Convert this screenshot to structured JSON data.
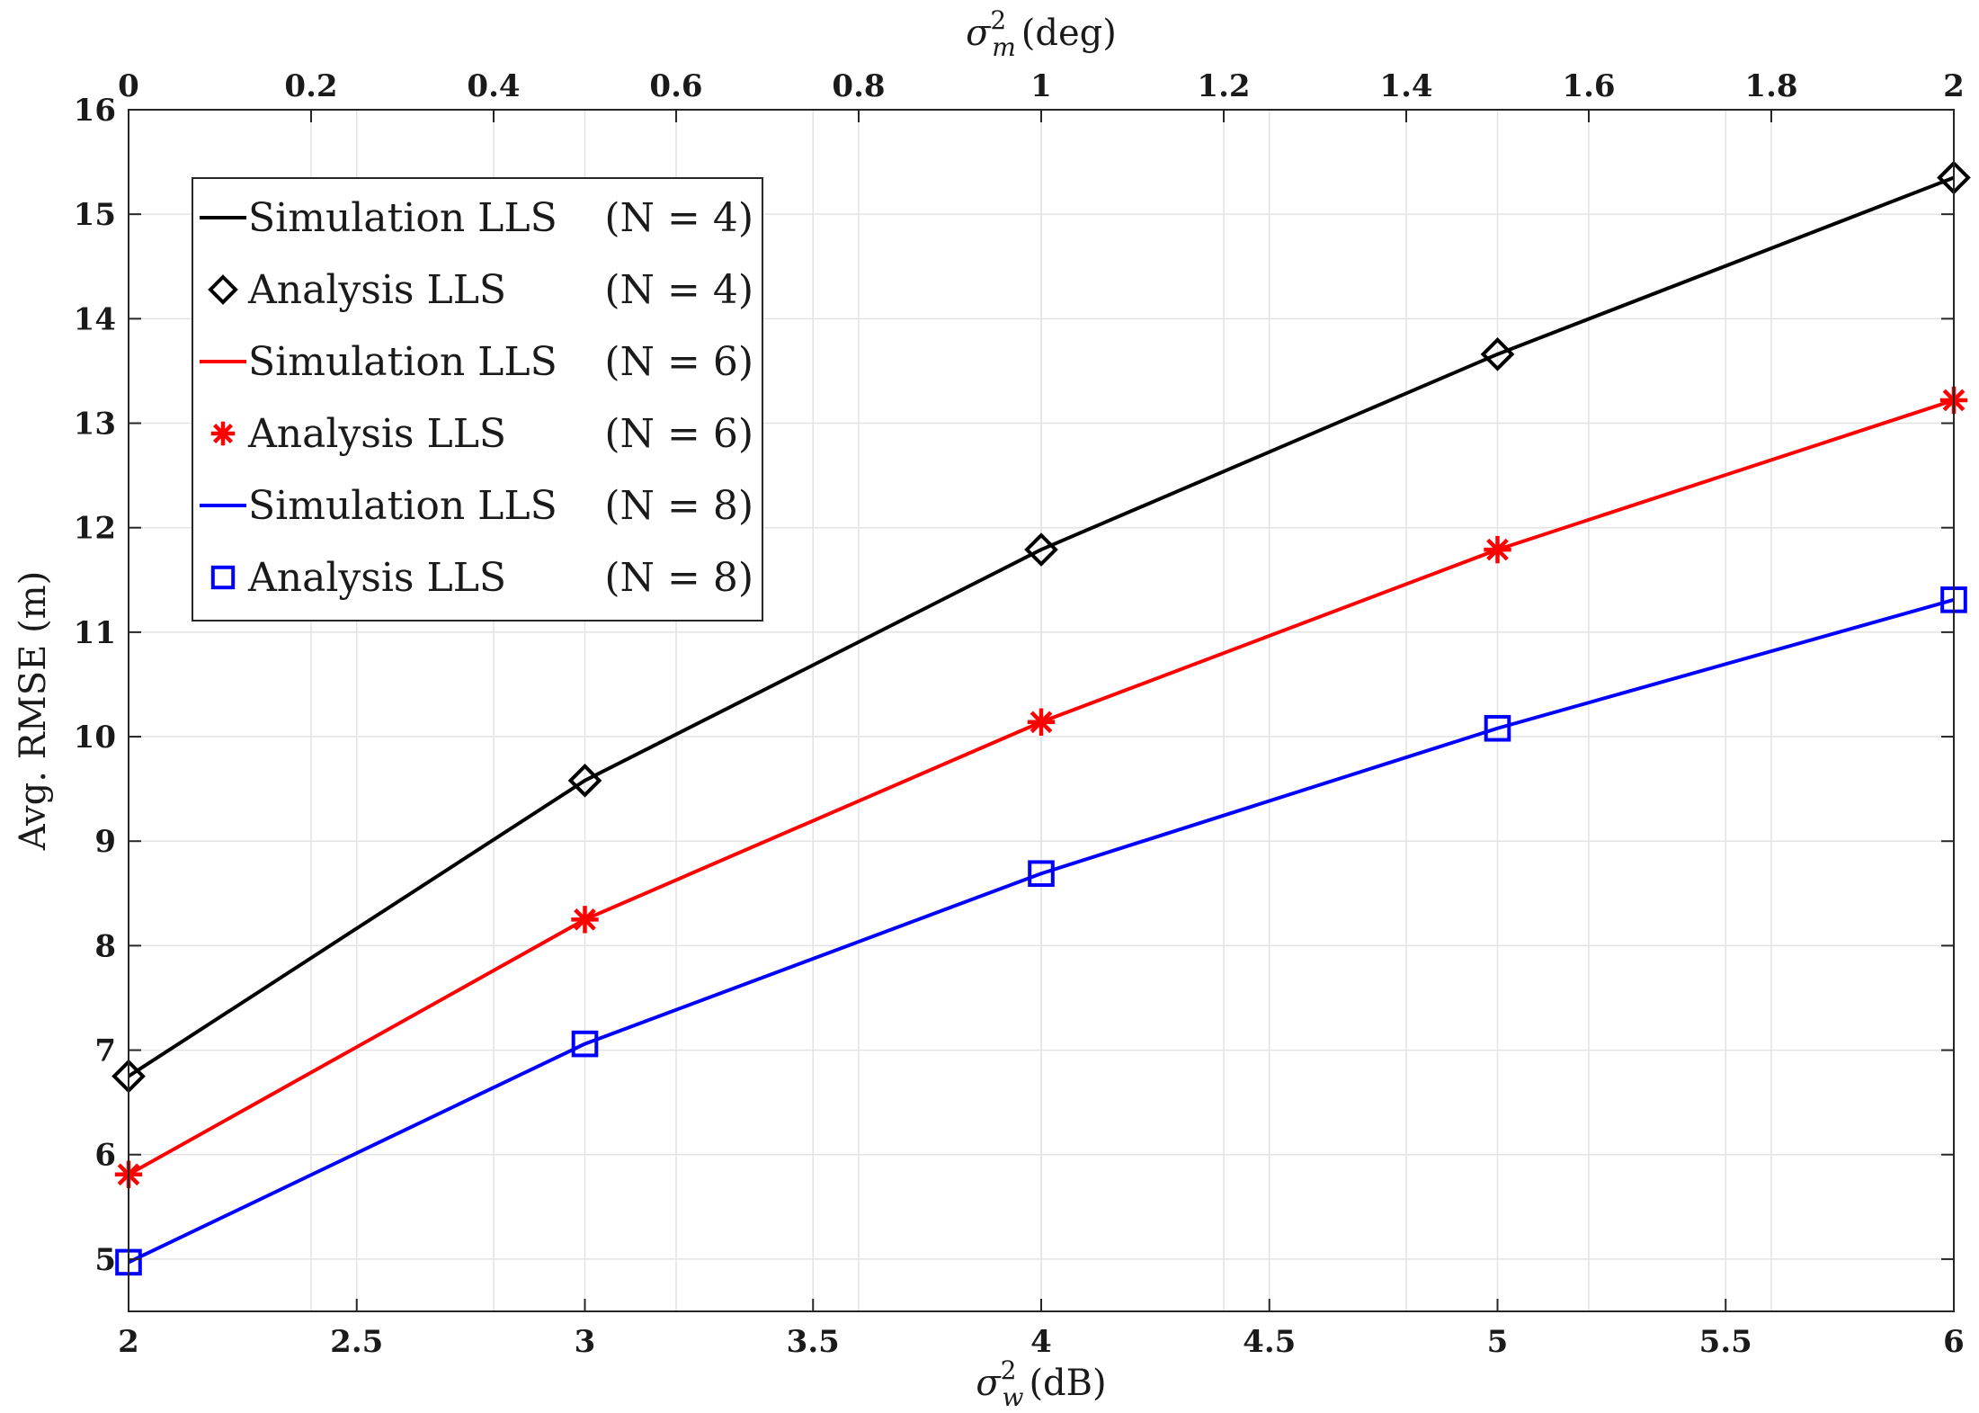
{
  "chart_data": {
    "type": "line",
    "xlabel": "σ_w^2 (dB)",
    "xlabel_parts": {
      "sym": "σ",
      "sub": "w",
      "sup": "2",
      "unit": "(dB)"
    },
    "x2label": "σ_m^2 (deg)",
    "x2label_parts": {
      "sym": "σ",
      "sub": "m",
      "sup": "2",
      "unit": "(deg)"
    },
    "ylabel": "Avg. RMSE (m)",
    "xlim": [
      2,
      6
    ],
    "x2lim": [
      0,
      2
    ],
    "ylim": [
      4.5,
      16
    ],
    "xticks": [
      "2",
      "2.5",
      "3",
      "3.5",
      "4",
      "4.5",
      "5",
      "5.5",
      "6"
    ],
    "x2ticks": [
      "0",
      "0.2",
      "0.4",
      "0.6",
      "0.8",
      "1",
      "1.2",
      "1.4",
      "1.6",
      "1.8",
      "2"
    ],
    "yticks": [
      "5",
      "6",
      "7",
      "8",
      "9",
      "10",
      "11",
      "12",
      "13",
      "14",
      "15",
      "16"
    ],
    "grid": true,
    "legend_position": "top-left",
    "x": [
      2,
      3,
      4,
      5,
      6
    ],
    "series": [
      {
        "name": "Simulation LLS",
        "n_label": "(N = 4)",
        "color": "#000000",
        "style": "line",
        "marker": "none",
        "values": [
          6.75,
          9.58,
          11.79,
          13.66,
          15.35
        ]
      },
      {
        "name": "Analysis LLS",
        "n_label": "(N = 4)",
        "color": "#000000",
        "style": "marker",
        "marker": "diamond",
        "values": [
          6.75,
          9.58,
          11.79,
          13.66,
          15.35
        ]
      },
      {
        "name": "Simulation LLS",
        "n_label": "(N = 6)",
        "color": "#ff0000",
        "style": "line",
        "marker": "none",
        "values": [
          5.81,
          8.25,
          10.14,
          11.79,
          13.22
        ]
      },
      {
        "name": "Analysis LLS",
        "n_label": "(N = 6)",
        "color": "#ff0000",
        "style": "marker",
        "marker": "asterisk",
        "values": [
          5.81,
          8.25,
          10.14,
          11.79,
          13.22
        ]
      },
      {
        "name": "Simulation LLS",
        "n_label": "(N = 8)",
        "color": "#0000ff",
        "style": "line",
        "marker": "none",
        "values": [
          4.97,
          7.06,
          8.69,
          10.08,
          11.31
        ]
      },
      {
        "name": "Analysis LLS",
        "n_label": "(N = 8)",
        "color": "#0000ff",
        "style": "marker",
        "marker": "square",
        "values": [
          4.97,
          7.06,
          8.69,
          10.08,
          11.31
        ]
      }
    ]
  }
}
